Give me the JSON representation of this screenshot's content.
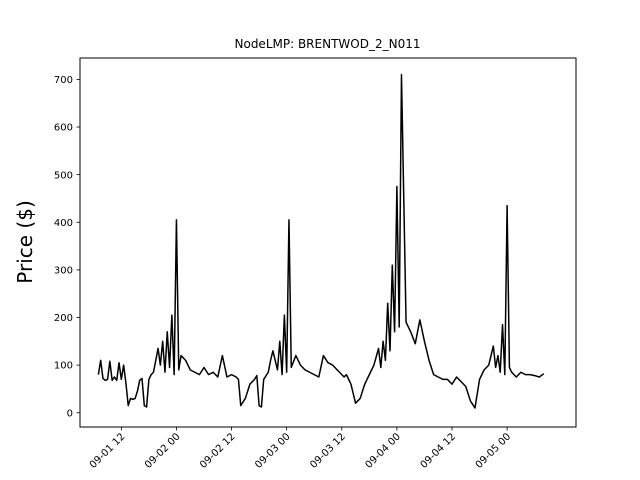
{
  "chart_data": {
    "type": "line",
    "title": "NodeLMP: BRENTWOD_2_N011",
    "xlabel": "",
    "ylabel": "Price ($)",
    "xlim": [
      "2015-09-01 03:00",
      "2015-09-05 15:00"
    ],
    "ylim": [
      -30,
      745
    ],
    "grid": false,
    "legend": "none",
    "line_color": "#000000",
    "x_ticks": [
      {
        "date": "2015-09-01 12:00",
        "label": "09-01 12"
      },
      {
        "date": "2015-09-02 00:00",
        "label": "09-02 00"
      },
      {
        "date": "2015-09-02 12:00",
        "label": "09-02 12"
      },
      {
        "date": "2015-09-03 00:00",
        "label": "09-03 00"
      },
      {
        "date": "2015-09-03 12:00",
        "label": "09-03 12"
      },
      {
        "date": "2015-09-04 00:00",
        "label": "09-04 00"
      },
      {
        "date": "2015-09-04 12:00",
        "label": "09-04 12"
      },
      {
        "date": "2015-09-05 00:00",
        "label": "09-05 00"
      }
    ],
    "y_ticks": [
      0,
      100,
      200,
      300,
      400,
      500,
      600,
      700
    ],
    "series": [
      {
        "x": [
          "2015-09-01 07:00",
          "2015-09-01 07:30",
          "2015-09-01 08:00",
          "2015-09-01 08:30",
          "2015-09-01 09:00",
          "2015-09-01 09:30",
          "2015-09-01 10:00",
          "2015-09-01 10:30",
          "2015-09-01 11:00",
          "2015-09-01 11:30",
          "2015-09-01 12:00",
          "2015-09-01 12:30",
          "2015-09-01 13:00",
          "2015-09-01 13:30",
          "2015-09-01 14:00",
          "2015-09-01 14:30",
          "2015-09-01 15:00",
          "2015-09-01 15:30",
          "2015-09-01 16:00",
          "2015-09-01 16:30",
          "2015-09-01 17:00",
          "2015-09-01 17:30",
          "2015-09-01 18:00",
          "2015-09-01 18:30",
          "2015-09-01 19:00",
          "2015-09-01 19:30",
          "2015-09-01 20:00",
          "2015-09-01 20:30",
          "2015-09-01 21:00",
          "2015-09-01 21:30",
          "2015-09-01 22:00",
          "2015-09-01 22:30",
          "2015-09-01 23:00",
          "2015-09-01 23:30",
          "2015-09-02 00:00",
          "2015-09-02 00:30",
          "2015-09-02 01:00",
          "2015-09-02 02:00",
          "2015-09-02 03:00",
          "2015-09-02 04:00",
          "2015-09-02 05:00",
          "2015-09-02 06:00",
          "2015-09-02 07:00",
          "2015-09-02 08:00",
          "2015-09-02 09:00",
          "2015-09-02 10:00",
          "2015-09-02 11:00",
          "2015-09-02 12:00",
          "2015-09-02 13:00",
          "2015-09-02 13:30",
          "2015-09-02 14:00",
          "2015-09-02 15:00",
          "2015-09-02 16:00",
          "2015-09-02 17:00",
          "2015-09-02 17:30",
          "2015-09-02 18:00",
          "2015-09-02 18:30",
          "2015-09-02 19:00",
          "2015-09-02 20:00",
          "2015-09-02 20:30",
          "2015-09-02 21:00",
          "2015-09-02 22:00",
          "2015-09-02 22:30",
          "2015-09-02 23:00",
          "2015-09-02 23:30",
          "2015-09-03 00:00",
          "2015-09-03 00:30",
          "2015-09-03 01:00",
          "2015-09-03 02:00",
          "2015-09-03 03:00",
          "2015-09-03 04:00",
          "2015-09-03 05:00",
          "2015-09-03 06:00",
          "2015-09-03 07:00",
          "2015-09-03 08:00",
          "2015-09-03 09:00",
          "2015-09-03 10:00",
          "2015-09-03 11:00",
          "2015-09-03 12:00",
          "2015-09-03 12:30",
          "2015-09-03 13:00",
          "2015-09-03 14:00",
          "2015-09-03 15:00",
          "2015-09-03 16:00",
          "2015-09-03 17:00",
          "2015-09-03 18:00",
          "2015-09-03 19:00",
          "2015-09-03 20:00",
          "2015-09-03 20:30",
          "2015-09-03 21:00",
          "2015-09-03 21:30",
          "2015-09-03 22:00",
          "2015-09-03 22:30",
          "2015-09-03 23:00",
          "2015-09-03 23:30",
          "2015-09-04 00:00",
          "2015-09-04 00:30",
          "2015-09-04 01:00",
          "2015-09-04 02:00",
          "2015-09-04 03:00",
          "2015-09-04 04:00",
          "2015-09-04 05:00",
          "2015-09-04 06:00",
          "2015-09-04 07:00",
          "2015-09-04 08:00",
          "2015-09-04 09:00",
          "2015-09-04 10:00",
          "2015-09-04 11:00",
          "2015-09-04 12:00",
          "2015-09-04 13:00",
          "2015-09-04 14:00",
          "2015-09-04 15:00",
          "2015-09-04 16:00",
          "2015-09-04 17:00",
          "2015-09-04 18:00",
          "2015-09-04 18:30",
          "2015-09-04 19:00",
          "2015-09-04 20:00",
          "2015-09-04 21:00",
          "2015-09-04 21:30",
          "2015-09-04 22:00",
          "2015-09-04 22:30",
          "2015-09-04 23:00",
          "2015-09-04 23:30",
          "2015-09-05 00:00",
          "2015-09-05 00:30",
          "2015-09-05 01:00",
          "2015-09-05 02:00",
          "2015-09-05 03:00",
          "2015-09-05 04:00",
          "2015-09-05 05:00",
          "2015-09-05 06:00",
          "2015-09-05 07:00",
          "2015-09-05 08:00"
        ],
        "y": [
          80,
          110,
          72,
          68,
          70,
          108,
          68,
          75,
          68,
          105,
          70,
          100,
          62,
          15,
          30,
          28,
          30,
          45,
          68,
          72,
          15,
          12,
          70,
          80,
          85,
          110,
          135,
          100,
          150,
          85,
          170,
          95,
          205,
          80,
          405,
          90,
          120,
          110,
          90,
          85,
          80,
          95,
          80,
          85,
          75,
          120,
          75,
          80,
          75,
          70,
          15,
          30,
          60,
          70,
          78,
          15,
          12,
          70,
          85,
          110,
          130,
          90,
          150,
          80,
          205,
          85,
          405,
          95,
          120,
          100,
          90,
          85,
          80,
          75,
          120,
          105,
          100,
          90,
          80,
          75,
          80,
          60,
          20,
          30,
          60,
          80,
          100,
          135,
          95,
          150,
          110,
          230,
          130,
          310,
          170,
          475,
          180,
          710,
          190,
          170,
          145,
          195,
          150,
          110,
          80,
          75,
          70,
          70,
          60,
          75,
          65,
          55,
          25,
          10,
          70,
          80,
          90,
          100,
          140,
          95,
          120,
          85,
          185,
          80,
          435,
          95,
          85,
          75,
          85,
          80,
          80,
          78,
          75,
          82
        ]
      }
    ]
  }
}
